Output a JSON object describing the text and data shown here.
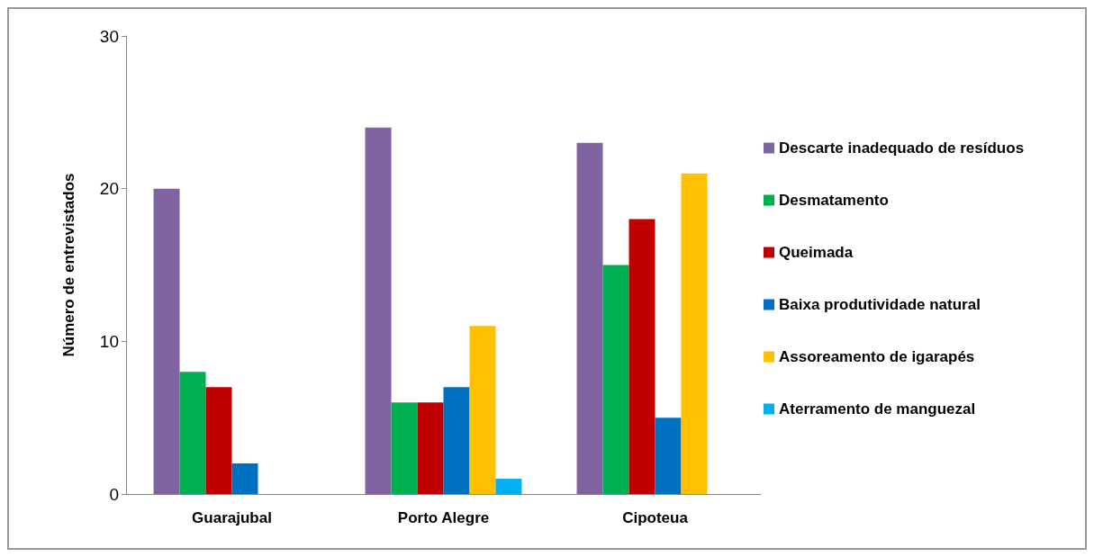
{
  "chart_data": {
    "type": "bar",
    "ylabel": "Número de entrevistados",
    "categories": [
      "Guarajubal",
      "Porto Alegre",
      "Cipoteua"
    ],
    "series": [
      {
        "name": "Descarte inadequado de resíduos",
        "color": "#8064a2",
        "values": [
          20,
          24,
          23
        ]
      },
      {
        "name": "Desmatamento",
        "color": "#00b050",
        "values": [
          8,
          6,
          15
        ]
      },
      {
        "name": "Queimada",
        "color": "#c00000",
        "values": [
          7,
          6,
          18
        ]
      },
      {
        "name": "Baixa produtividade natural",
        "color": "#0070c0",
        "values": [
          2,
          7,
          5
        ]
      },
      {
        "name": "Assoreamento de igarapés",
        "color": "#ffc000",
        "values": [
          null,
          11,
          21
        ]
      },
      {
        "name": "Aterramento de manguezal",
        "color": "#00b0f0",
        "values": [
          null,
          1,
          null
        ]
      }
    ],
    "ylim": [
      0,
      30
    ],
    "yticks": [
      0,
      10,
      20,
      30
    ],
    "grid": false,
    "legend": "right"
  }
}
